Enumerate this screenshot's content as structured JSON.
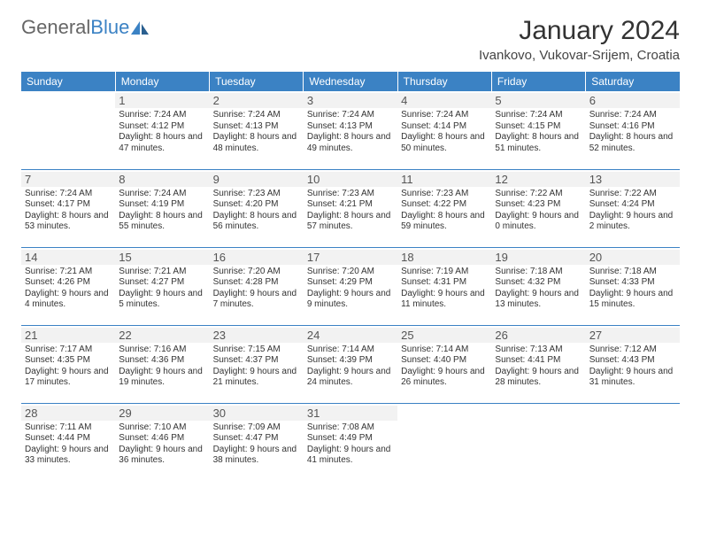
{
  "logo": {
    "text1": "General",
    "text2": "Blue"
  },
  "title": "January 2024",
  "location": "Ivankovo, Vukovar-Srijem, Croatia",
  "colors": {
    "header_bg": "#3b82c4",
    "header_fg": "#ffffff",
    "daynum_bg": "#f2f2f2",
    "border": "#3b82c4",
    "text": "#333333"
  },
  "dayHeaders": [
    "Sunday",
    "Monday",
    "Tuesday",
    "Wednesday",
    "Thursday",
    "Friday",
    "Saturday"
  ],
  "weeks": [
    [
      null,
      {
        "n": "1",
        "sunrise": "7:24 AM",
        "sunset": "4:12 PM",
        "daylight": "8 hours and 47 minutes."
      },
      {
        "n": "2",
        "sunrise": "7:24 AM",
        "sunset": "4:13 PM",
        "daylight": "8 hours and 48 minutes."
      },
      {
        "n": "3",
        "sunrise": "7:24 AM",
        "sunset": "4:13 PM",
        "daylight": "8 hours and 49 minutes."
      },
      {
        "n": "4",
        "sunrise": "7:24 AM",
        "sunset": "4:14 PM",
        "daylight": "8 hours and 50 minutes."
      },
      {
        "n": "5",
        "sunrise": "7:24 AM",
        "sunset": "4:15 PM",
        "daylight": "8 hours and 51 minutes."
      },
      {
        "n": "6",
        "sunrise": "7:24 AM",
        "sunset": "4:16 PM",
        "daylight": "8 hours and 52 minutes."
      }
    ],
    [
      {
        "n": "7",
        "sunrise": "7:24 AM",
        "sunset": "4:17 PM",
        "daylight": "8 hours and 53 minutes."
      },
      {
        "n": "8",
        "sunrise": "7:24 AM",
        "sunset": "4:19 PM",
        "daylight": "8 hours and 55 minutes."
      },
      {
        "n": "9",
        "sunrise": "7:23 AM",
        "sunset": "4:20 PM",
        "daylight": "8 hours and 56 minutes."
      },
      {
        "n": "10",
        "sunrise": "7:23 AM",
        "sunset": "4:21 PM",
        "daylight": "8 hours and 57 minutes."
      },
      {
        "n": "11",
        "sunrise": "7:23 AM",
        "sunset": "4:22 PM",
        "daylight": "8 hours and 59 minutes."
      },
      {
        "n": "12",
        "sunrise": "7:22 AM",
        "sunset": "4:23 PM",
        "daylight": "9 hours and 0 minutes."
      },
      {
        "n": "13",
        "sunrise": "7:22 AM",
        "sunset": "4:24 PM",
        "daylight": "9 hours and 2 minutes."
      }
    ],
    [
      {
        "n": "14",
        "sunrise": "7:21 AM",
        "sunset": "4:26 PM",
        "daylight": "9 hours and 4 minutes."
      },
      {
        "n": "15",
        "sunrise": "7:21 AM",
        "sunset": "4:27 PM",
        "daylight": "9 hours and 5 minutes."
      },
      {
        "n": "16",
        "sunrise": "7:20 AM",
        "sunset": "4:28 PM",
        "daylight": "9 hours and 7 minutes."
      },
      {
        "n": "17",
        "sunrise": "7:20 AM",
        "sunset": "4:29 PM",
        "daylight": "9 hours and 9 minutes."
      },
      {
        "n": "18",
        "sunrise": "7:19 AM",
        "sunset": "4:31 PM",
        "daylight": "9 hours and 11 minutes."
      },
      {
        "n": "19",
        "sunrise": "7:18 AM",
        "sunset": "4:32 PM",
        "daylight": "9 hours and 13 minutes."
      },
      {
        "n": "20",
        "sunrise": "7:18 AM",
        "sunset": "4:33 PM",
        "daylight": "9 hours and 15 minutes."
      }
    ],
    [
      {
        "n": "21",
        "sunrise": "7:17 AM",
        "sunset": "4:35 PM",
        "daylight": "9 hours and 17 minutes."
      },
      {
        "n": "22",
        "sunrise": "7:16 AM",
        "sunset": "4:36 PM",
        "daylight": "9 hours and 19 minutes."
      },
      {
        "n": "23",
        "sunrise": "7:15 AM",
        "sunset": "4:37 PM",
        "daylight": "9 hours and 21 minutes."
      },
      {
        "n": "24",
        "sunrise": "7:14 AM",
        "sunset": "4:39 PM",
        "daylight": "9 hours and 24 minutes."
      },
      {
        "n": "25",
        "sunrise": "7:14 AM",
        "sunset": "4:40 PM",
        "daylight": "9 hours and 26 minutes."
      },
      {
        "n": "26",
        "sunrise": "7:13 AM",
        "sunset": "4:41 PM",
        "daylight": "9 hours and 28 minutes."
      },
      {
        "n": "27",
        "sunrise": "7:12 AM",
        "sunset": "4:43 PM",
        "daylight": "9 hours and 31 minutes."
      }
    ],
    [
      {
        "n": "28",
        "sunrise": "7:11 AM",
        "sunset": "4:44 PM",
        "daylight": "9 hours and 33 minutes."
      },
      {
        "n": "29",
        "sunrise": "7:10 AM",
        "sunset": "4:46 PM",
        "daylight": "9 hours and 36 minutes."
      },
      {
        "n": "30",
        "sunrise": "7:09 AM",
        "sunset": "4:47 PM",
        "daylight": "9 hours and 38 minutes."
      },
      {
        "n": "31",
        "sunrise": "7:08 AM",
        "sunset": "4:49 PM",
        "daylight": "9 hours and 41 minutes."
      },
      null,
      null,
      null
    ]
  ],
  "labels": {
    "sunrise": "Sunrise:",
    "sunset": "Sunset:",
    "daylight": "Daylight:"
  }
}
